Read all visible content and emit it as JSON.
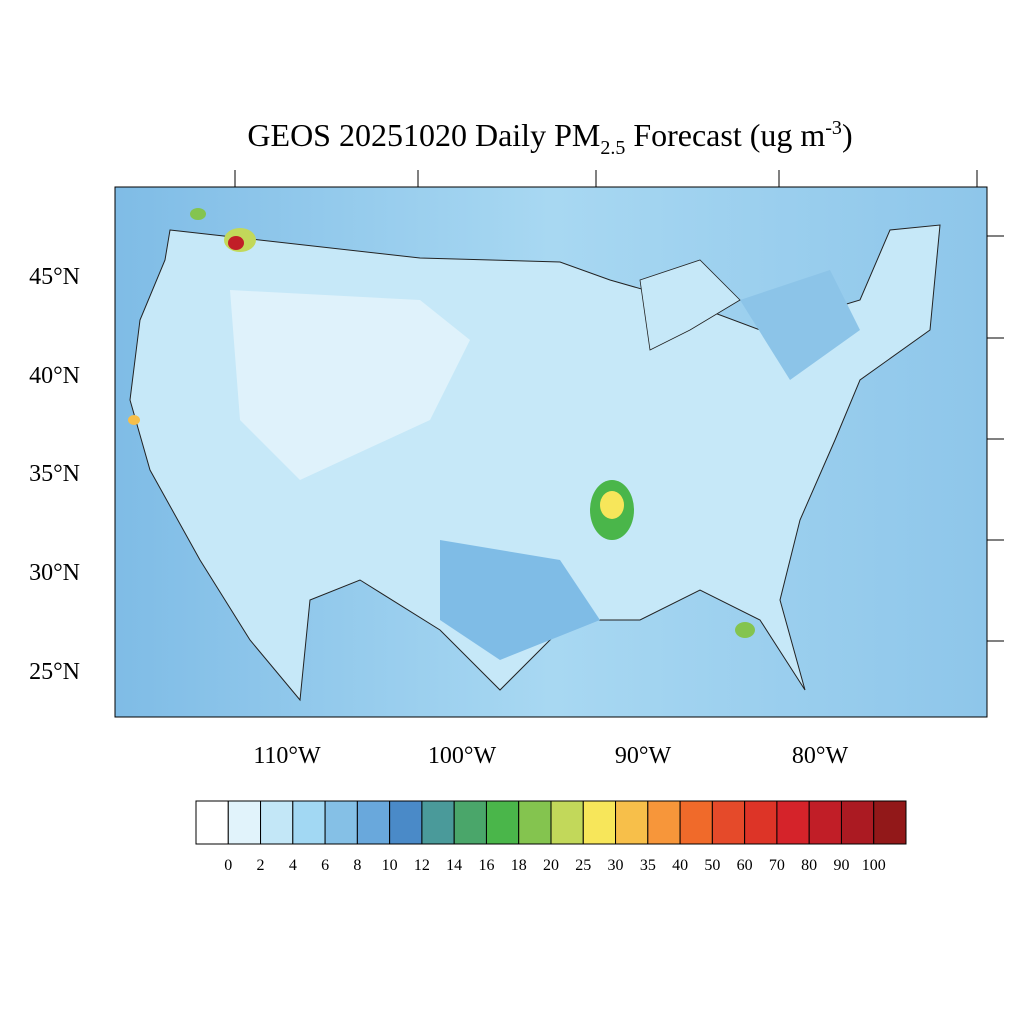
{
  "title": {
    "main": "GEOS 20251020 Daily PM",
    "subscript": "2.5",
    "after": " Forecast (ug m",
    "superscript": "-3",
    "close": ")"
  },
  "map": {
    "lat_labels": [
      "45°N",
      "40°N",
      "35°N",
      "30°N",
      "25°N"
    ],
    "lon_labels": [
      "110°W",
      "100°W",
      "90°W",
      "80°W"
    ]
  },
  "colorbar": {
    "levels": [
      0,
      2,
      4,
      6,
      8,
      10,
      12,
      14,
      16,
      18,
      20,
      25,
      30,
      35,
      40,
      50,
      60,
      70,
      80,
      90,
      100
    ],
    "colors": [
      "#ffffff",
      "#e1f3fb",
      "#c3e7f7",
      "#a2d8f3",
      "#85c0e6",
      "#69a8dc",
      "#4a8ac8",
      "#4a9a9a",
      "#4aa66a",
      "#4ab64a",
      "#84c44f",
      "#c2d85a",
      "#f7e65a",
      "#f7bf4a",
      "#f7963a",
      "#f06a2a",
      "#e54a2a",
      "#dd3427",
      "#d5232a",
      "#c11e27",
      "#ab1a22",
      "#921819"
    ]
  }
}
